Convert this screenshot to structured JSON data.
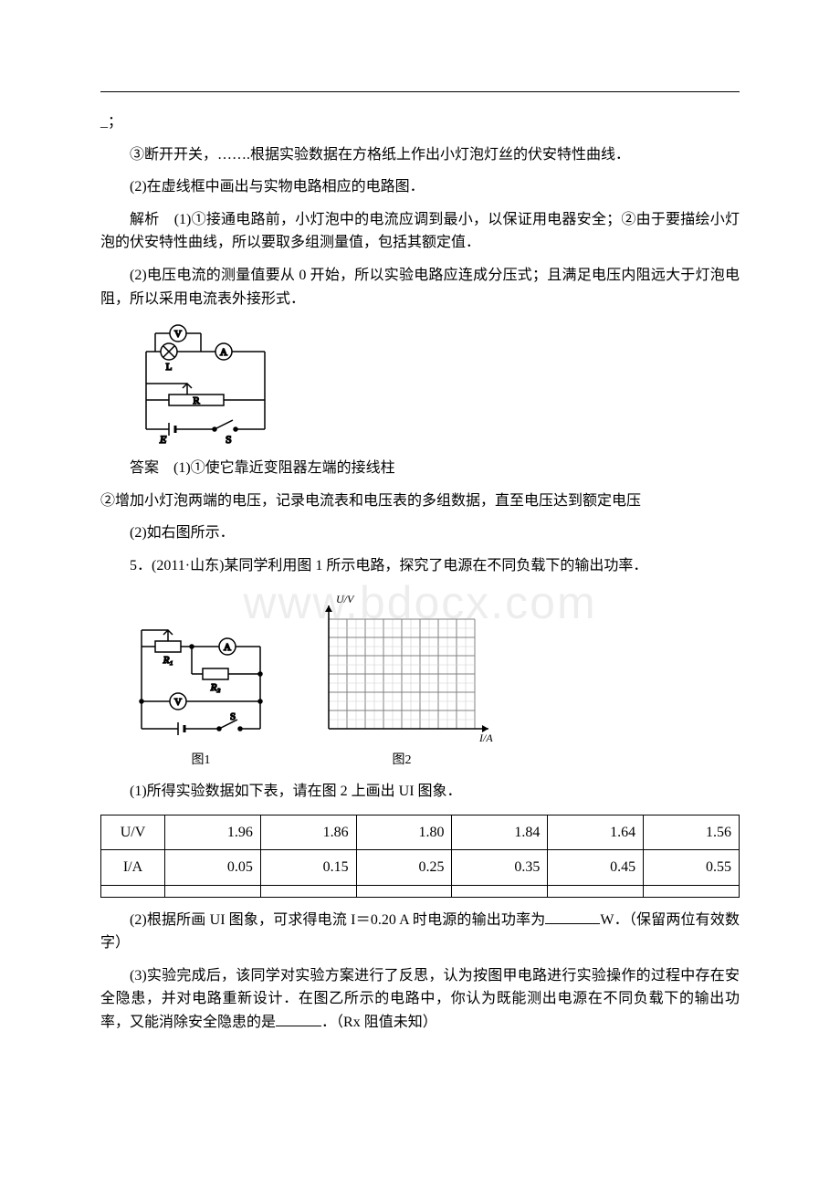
{
  "watermark": "www.bdocx.com",
  "frag0": "_；",
  "p1": "③断开开关，…….根据实验数据在方格纸上作出小灯泡灯丝的伏安特性曲线．",
  "p2": "(2)在虚线框中画出与实物电路相应的电路图．",
  "p3": "解析　(1)①接通电路前，小灯泡中的电流应调到最小，以保证用电器安全；②由于要描绘小灯泡的伏安特性曲线，所以要取多组测量值，包括其额定值．",
  "p4": "(2)电压电流的测量值要从 0 开始，所以实验电路应连成分压式；且满足电压内阻远大于灯泡电阻，所以采用电流表外接形式．",
  "p5": "答案　(1)①使它靠近变阻器左端的接线柱",
  "p6": "②增加小灯泡两端的电压，记录电流表和电压表的多组数据，直至电压达到额定电压",
  "p7": "(2)如右图所示．",
  "p8": "5．(2011·山东)某同学利用图 1 所示电路，探究了电源在不同负载下的输出功率．",
  "p9": "(1)所得实验数据如下表，请在图 2 上画出 UI 图象．",
  "p10a": "(2)根据所画 UI 图象，可求得电流 I＝0.20 A 时电源的输出功率为",
  "p10b": "W．（保留两位有效数字）",
  "p11a": "(3)实验完成后，该同学对实验方案进行了反思，认为按图甲电路进行实验操作的过程中存在安全隐患，并对电路重新设计．在图乙所示的电路中，你认为既能测出电源在不同负载下的输出功率，又能消除安全隐患的是",
  "p11b": "．（Rx 阻值未知）",
  "circuit1": {
    "labels": {
      "V": "V",
      "A": "A",
      "L": "L",
      "R": "R",
      "E": "E",
      "S": "S"
    }
  },
  "figs": {
    "circuit2": {
      "labels": {
        "A": "A",
        "V": "V",
        "R1": "R₁",
        "R2": "R₂",
        "S": "S"
      },
      "caption": "图1"
    },
    "grid": {
      "ylabel": "U/V",
      "xlabel": "I/A",
      "caption": "图2",
      "bg": "#ffffff",
      "minor_grid_color": "#cfcfcf",
      "major_grid_color": "#808080",
      "axis_color": "#000000",
      "nx_minor": 16,
      "ny_minor": 12,
      "major_every": 2
    }
  },
  "table": {
    "rows": [
      [
        "U/V",
        "1.96",
        "1.86",
        "1.80",
        "1.84",
        "1.64",
        "1.56"
      ],
      [
        "I/A",
        "0.05",
        "0.15",
        "0.25",
        "0.35",
        "0.45",
        "0.55"
      ],
      [
        "",
        "",
        "",
        "",
        "",
        "",
        ""
      ]
    ]
  }
}
